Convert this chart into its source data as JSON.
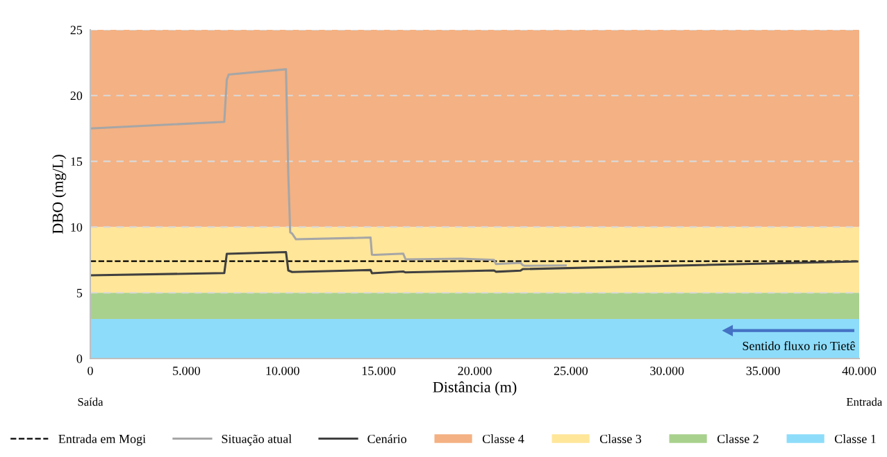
{
  "chart_data": {
    "type": "line",
    "xlabel": "Distância (m)",
    "ylabel": "DBO (mg/L)",
    "xlim": [
      0,
      40000
    ],
    "ylim": [
      0,
      25
    ],
    "xticks": [
      0,
      {
        "value": 5000,
        "label": "5.000"
      },
      {
        "value": 10000,
        "label": "10.000"
      },
      {
        "value": 15000,
        "label": "15.000"
      },
      {
        "value": 20000,
        "label": "20.000"
      },
      {
        "value": 25000,
        "label": "25.000"
      },
      {
        "value": 30000,
        "label": "30.000"
      },
      {
        "value": 35000,
        "label": "35.000"
      },
      {
        "value": 40000,
        "label": "40.000"
      }
    ],
    "yticks": [
      0,
      5,
      10,
      15,
      20,
      25
    ],
    "grid": "y",
    "legend": "bottom",
    "line_style": "solid",
    "marker": "none",
    "series": [
      {
        "name": "Situação atual",
        "color": "#a6a6a6",
        "x": [
          0,
          6970,
          7100,
          7200,
          10180,
          10300,
          10400,
          10500,
          10700,
          14580,
          14650,
          14800,
          16280,
          16400,
          19280,
          21000,
          21100,
          22380,
          22500,
          22600,
          24730
        ],
        "values": [
          17.5,
          18.0,
          21.2,
          21.6,
          22.0,
          14.0,
          9.6,
          9.5,
          9.07,
          9.2,
          7.9,
          7.88,
          7.98,
          7.54,
          7.6,
          7.5,
          7.19,
          7.28,
          7.1,
          7.05,
          7.08
        ]
      },
      {
        "name": "Cenário",
        "color": "#404040",
        "x": [
          0,
          6970,
          7100,
          10180,
          10300,
          10500,
          14580,
          14650,
          16280,
          16400,
          21000,
          21100,
          22380,
          22500,
          39900
        ],
        "values": [
          6.33,
          6.5,
          7.96,
          8.1,
          6.7,
          6.58,
          6.73,
          6.49,
          6.62,
          6.55,
          6.7,
          6.6,
          6.68,
          6.8,
          7.38
        ]
      }
    ],
    "ref_lines": [
      {
        "axis": "y",
        "value": 7.4,
        "label": "Entrada em Mogi",
        "color": "#000000",
        "line_style": "dashed"
      }
    ],
    "bands": [
      {
        "axis": "y",
        "from": 10,
        "to": 25,
        "label": "Classe 4",
        "color": "#f4b183"
      },
      {
        "axis": "y",
        "from": 5,
        "to": 10,
        "label": "Classe 3",
        "color": "#ffe699"
      },
      {
        "axis": "y",
        "from": 3,
        "to": 5,
        "label": "Classe 2",
        "color": "#a9d18e"
      },
      {
        "axis": "y",
        "from": 0,
        "to": 3,
        "label": "Classe 1",
        "color": "#8ddcfa"
      }
    ],
    "annotations": [
      "Saída",
      "Entrada",
      "Sentido fluxo rio Tietê"
    ]
  }
}
